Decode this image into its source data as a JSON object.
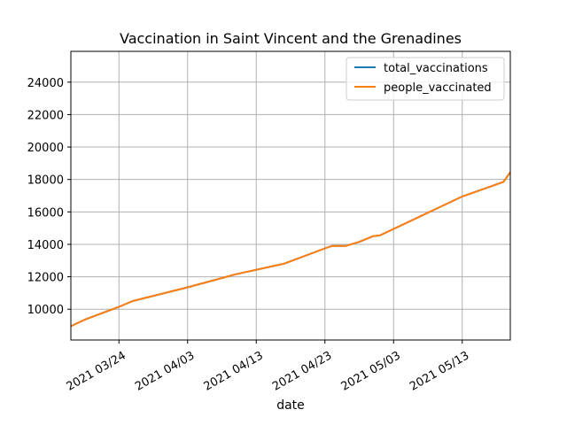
{
  "chart_data": {
    "type": "line",
    "title": "Vaccination in Saint Vincent and the Grenadines",
    "xlabel": "date",
    "ylabel": "",
    "x_start": "2021-03-17",
    "x_end": "2021-05-20",
    "ylim": [
      8100,
      25900
    ],
    "grid": true,
    "legend_placement": "top-right",
    "x_ticks": [
      "2021-03-24",
      "2021-04-03",
      "2021-04-13",
      "2021-04-23",
      "2021-05-03",
      "2021-05-13"
    ],
    "x_tick_labels": [
      "2021 03/24",
      "2021 04/03",
      "2021 04/13",
      "2021 04/23",
      "2021 05/03",
      "2021 05/13"
    ],
    "y_ticks": [
      10000,
      12000,
      14000,
      16000,
      18000,
      20000,
      22000,
      24000
    ],
    "y_tick_labels": [
      "10000",
      "12000",
      "14000",
      "16000",
      "18000",
      "20000",
      "22000",
      "24000"
    ],
    "x": [
      "2021-03-17",
      "2021-03-19",
      "2021-03-24",
      "2021-03-26",
      "2021-04-03",
      "2021-04-10",
      "2021-04-17",
      "2021-04-23",
      "2021-04-24",
      "2021-04-26",
      "2021-04-28",
      "2021-04-30",
      "2021-05-01",
      "2021-05-13",
      "2021-05-19",
      "2021-05-20"
    ],
    "series": [
      {
        "name": "total_vaccinations",
        "color": "#1f77b4",
        "values": [
          8950,
          9350,
          10150,
          10500,
          11350,
          12150,
          12800,
          13750,
          13900,
          13900,
          14150,
          14500,
          14550,
          16950,
          17850,
          18450
        ]
      },
      {
        "name": "people_vaccinated",
        "color": "#ff7f0e",
        "values": [
          8950,
          9350,
          10150,
          10500,
          11350,
          12150,
          12800,
          13750,
          13900,
          13900,
          14150,
          14500,
          14550,
          16950,
          17850,
          18450
        ]
      }
    ]
  }
}
